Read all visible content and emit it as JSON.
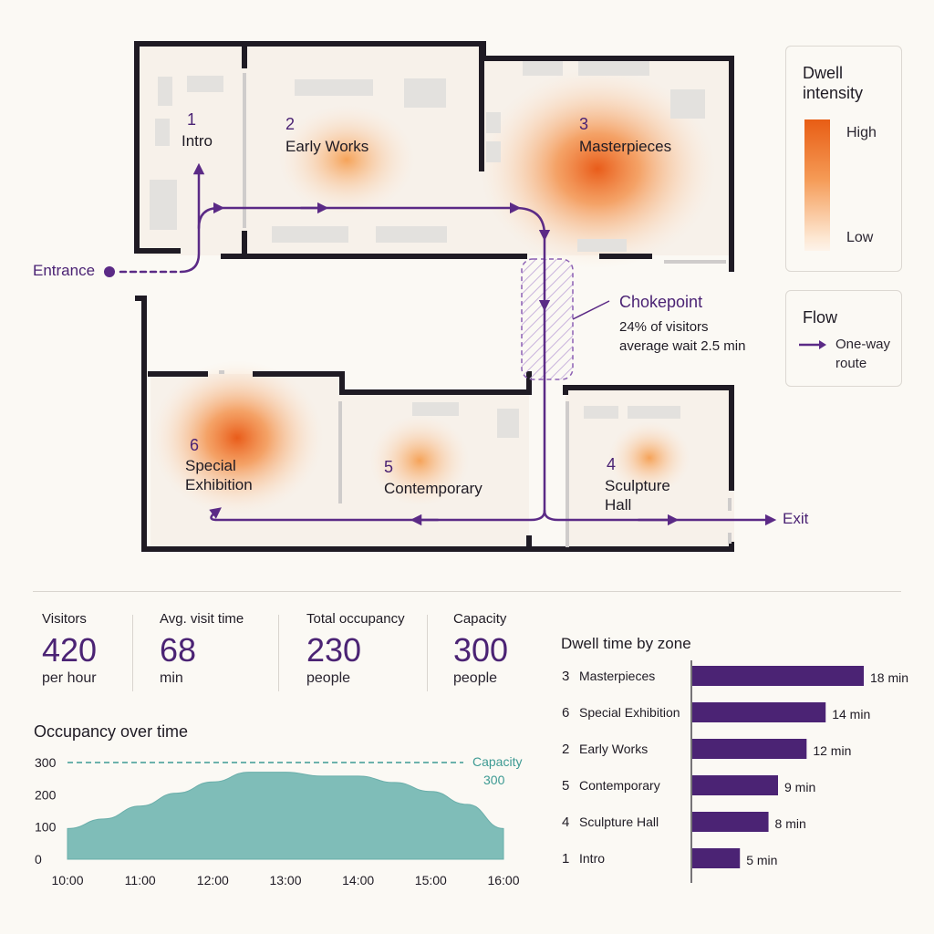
{
  "zones": [
    {
      "num": "1",
      "name": "Intro"
    },
    {
      "num": "2",
      "name": "Early Works"
    },
    {
      "num": "3",
      "name": "Masterpieces"
    },
    {
      "num": "4",
      "name": "Sculpture Hall"
    },
    {
      "num": "5",
      "name": "Contemporary"
    },
    {
      "num": "6",
      "name": "Special Exhibition"
    }
  ],
  "map": {
    "entrance": "Entrance",
    "exit": "Exit",
    "chokepoint": {
      "title": "Chokepoint",
      "line1": "24% of visitors",
      "line2": "average wait 2.5 min"
    },
    "colors": {
      "route": "#5b2a86",
      "heat": "#e8540f",
      "wall": "#1f1b24"
    }
  },
  "legend": {
    "dwell": {
      "title_line1": "Dwell",
      "title_line2": "intensity",
      "high": "High",
      "low": "Low"
    },
    "flow": {
      "title": "Flow",
      "item_line1": "One-way",
      "item_line2": "route"
    }
  },
  "stats": [
    {
      "label": "Visitors",
      "value": "420",
      "unit": "per hour"
    },
    {
      "label": "Avg. visit time",
      "value": "68",
      "unit": "min"
    },
    {
      "label": "Total occupancy",
      "value": "230",
      "unit": "people"
    },
    {
      "label": "Capacity",
      "value": "300",
      "unit": "people"
    }
  ],
  "chart_data": [
    {
      "type": "area",
      "title": "Occupancy over time",
      "x": [
        "10:00",
        "10:30",
        "11:00",
        "11:30",
        "12:00",
        "12:30",
        "13:00",
        "13:30",
        "14:00",
        "14:30",
        "15:00",
        "15:30",
        "16:00"
      ],
      "x_ticks": [
        "10:00",
        "11:00",
        "12:00",
        "13:00",
        "14:00",
        "15:00",
        "16:00"
      ],
      "values": [
        95,
        125,
        165,
        205,
        240,
        270,
        270,
        258,
        258,
        238,
        210,
        170,
        95
      ],
      "ylim": [
        0,
        300
      ],
      "y_ticks": [
        0,
        100,
        200,
        300
      ],
      "reference_line": {
        "value": 300,
        "label_line1": "Capacity",
        "label_line2": "300"
      },
      "fill_color": "#7fbdb8",
      "reference_color": "#3d9a93",
      "grid": false
    },
    {
      "type": "bar",
      "orientation": "horizontal",
      "title": "Dwell time by zone",
      "categories": [
        {
          "num": "3",
          "name": "Masterpieces"
        },
        {
          "num": "6",
          "name": "Special Exhibition"
        },
        {
          "num": "2",
          "name": "Early Works"
        },
        {
          "num": "5",
          "name": "Contemporary"
        },
        {
          "num": "4",
          "name": "Sculpture Hall"
        },
        {
          "num": "1",
          "name": "Intro"
        }
      ],
      "values": [
        18,
        14,
        12,
        9,
        8,
        5
      ],
      "value_labels": [
        "18 min",
        "14 min",
        "12 min",
        "9 min",
        "8 min",
        "5 min"
      ],
      "xlim": [
        0,
        18
      ],
      "bar_color": "#4b2374"
    }
  ]
}
